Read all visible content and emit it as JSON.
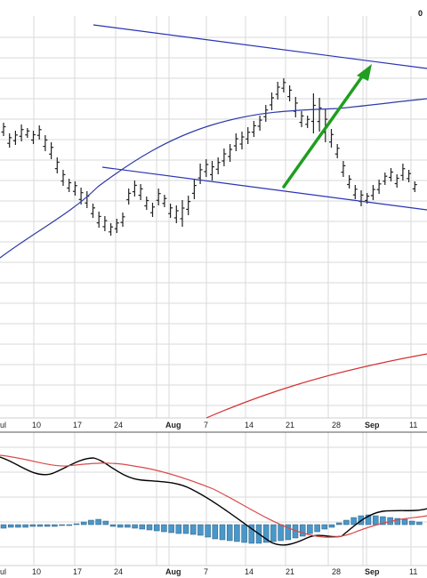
{
  "corner_text": "0",
  "chart_data": [
    {
      "type": "ohlc",
      "x_labels": [
        "ul",
        "10",
        "17",
        "24",
        "Aug",
        "7",
        "14",
        "21",
        "28",
        "Sep",
        "11"
      ],
      "price_bars": [
        [
          162,
          147
        ],
        [
          150,
          134
        ],
        [
          153,
          137
        ],
        [
          160,
          141
        ],
        [
          156,
          145
        ],
        [
          153,
          138
        ],
        [
          159,
          143
        ],
        [
          148,
          130
        ],
        [
          140,
          121
        ],
        [
          123,
          105
        ],
        [
          109,
          91
        ],
        [
          99,
          84
        ],
        [
          96,
          80
        ],
        [
          89,
          70
        ],
        [
          85,
          66
        ],
        [
          71,
          55
        ],
        [
          62,
          44
        ],
        [
          57,
          40
        ],
        [
          49,
          35
        ],
        [
          54,
          38
        ],
        [
          61,
          45
        ],
        [
          88,
          70
        ],
        [
          97,
          79
        ],
        [
          93,
          75
        ],
        [
          79,
          64
        ],
        [
          72,
          56
        ],
        [
          88,
          69
        ],
        [
          81,
          67
        ],
        [
          71,
          55
        ],
        [
          69,
          49
        ],
        [
          75,
          45
        ],
        [
          80,
          58
        ],
        [
          98,
          76
        ],
        [
          116,
          93
        ],
        [
          121,
          101
        ],
        [
          119,
          97
        ],
        [
          123,
          104
        ],
        [
          133,
          113
        ],
        [
          138,
          118
        ],
        [
          150,
          130
        ],
        [
          152,
          132
        ],
        [
          157,
          138
        ],
        [
          164,
          146
        ],
        [
          170,
          153
        ],
        [
          182,
          163
        ],
        [
          196,
          176
        ],
        [
          208,
          188
        ],
        [
          212,
          196
        ],
        [
          204,
          186
        ],
        [
          191,
          168
        ],
        [
          175,
          157
        ],
        [
          170,
          156
        ],
        [
          195,
          150
        ],
        [
          190,
          152
        ],
        [
          177,
          140
        ],
        [
          155,
          134
        ],
        [
          138,
          122
        ],
        [
          119,
          101
        ],
        [
          103,
          88
        ],
        [
          92,
          76
        ],
        [
          86,
          68
        ],
        [
          83,
          71
        ],
        [
          92,
          75
        ],
        [
          98,
          82
        ],
        [
          106,
          92
        ],
        [
          111,
          96
        ],
        [
          104,
          89
        ],
        [
          116,
          97
        ],
        [
          109,
          95
        ],
        [
          96,
          84
        ]
      ],
      "moving_average_line": "rising, flattening from Aug",
      "trend_channel": "descending parallel lines",
      "arrow_annotation": "green upward arrow from Aug 21 low to Sep high"
    },
    {
      "type": "macd",
      "x_labels": [
        "ul",
        "10",
        "17",
        "24",
        "Aug",
        "7",
        "14",
        "21",
        "28",
        "Sep",
        "11"
      ],
      "macd_line": "black",
      "signal_line": "red",
      "histogram": "steel-blue bars around zero"
    }
  ],
  "colors": {
    "grid": "#dadada",
    "bars": "#222222",
    "channel": "#2a33b5",
    "moving_average": "#2d3aa8",
    "arrow": "#1f9e1f",
    "lower_line": "#d23030",
    "macd": "#000000",
    "signal": "#d94a4a",
    "histogram": "#4a97c9",
    "histogram_edge": "#2a5d80"
  }
}
